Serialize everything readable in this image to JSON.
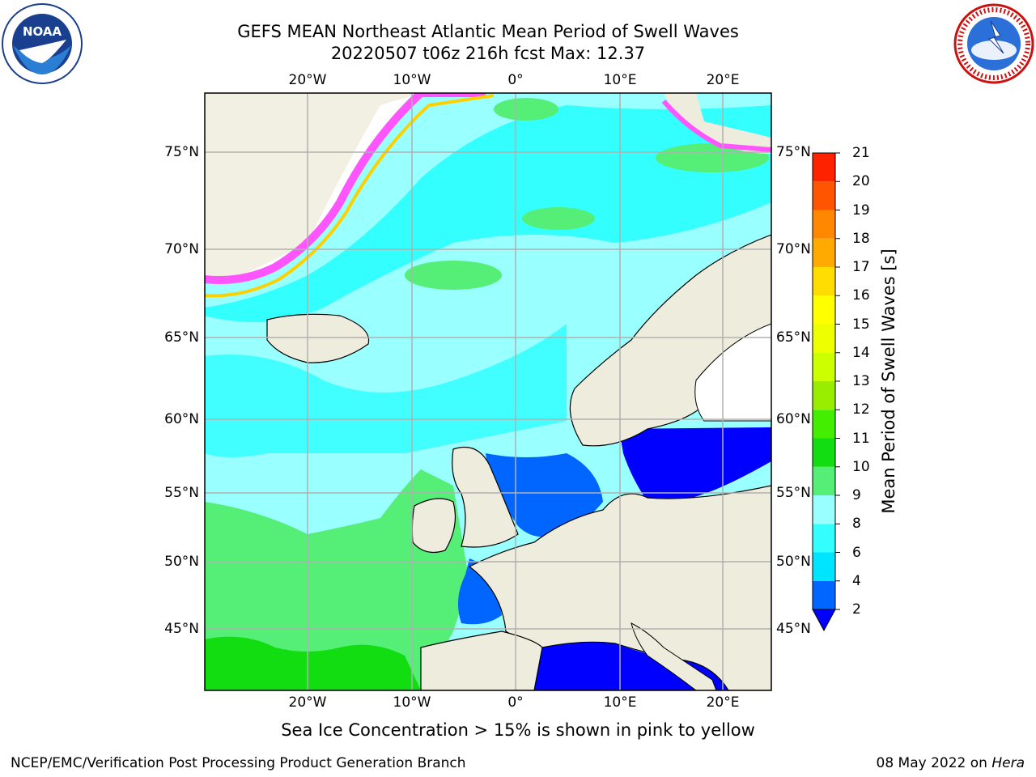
{
  "header": {
    "title_line1": "GEFS MEAN Northeast Atlantic Mean Period of Swell Waves",
    "title_line2": "20220507 t06z 216h fcst   Max: 12.37"
  },
  "logos": {
    "noaa": {
      "text": "NOAA",
      "ring_text": "NATIONAL OCEANIC AND ATMOSPHERIC ADMINISTRATION · U.S. DEPARTMENT OF COMMERCE"
    },
    "nws": {
      "ring_text": "NATIONAL WEATHER SERVICE"
    }
  },
  "map": {
    "lon_labels_top": [
      "20°W",
      "10°W",
      "0°",
      "10°E",
      "20°E"
    ],
    "lon_labels_bottom": [
      "20°W",
      "10°W",
      "0°",
      "10°E",
      "20°E"
    ],
    "lat_labels_left": [
      "75°N",
      "70°N",
      "65°N",
      "60°N",
      "55°N",
      "50°N",
      "45°N"
    ],
    "lat_labels_right": [
      "75°N",
      "70°N",
      "65°N",
      "60°N",
      "55°N",
      "50°N",
      "45°N"
    ],
    "colors": {
      "ocean_light": "#99ffff",
      "ocean_cyan": "#33ffff",
      "land": "#eeecdc",
      "green": "#55ee77",
      "blue": "#0000ff",
      "ice_pink": "#ff55ff",
      "ice_yellow": "#ffd000"
    }
  },
  "colorbar": {
    "label": "Mean Period of Swell Waves [s]",
    "ticks": [
      "2",
      "4",
      "6",
      "8",
      "9",
      "10",
      "11",
      "12",
      "13",
      "14",
      "15",
      "16",
      "17",
      "18",
      "19",
      "20",
      "21"
    ],
    "colors": [
      "#0066ff",
      "#00e5ff",
      "#33ffff",
      "#99ffff",
      "#55ee77",
      "#11dd11",
      "#44ee00",
      "#99ee00",
      "#ccff00",
      "#eeff00",
      "#ffff00",
      "#ffdd00",
      "#ffaa00",
      "#ff8800",
      "#ff5500",
      "#ff2200"
    ],
    "extend_color": "#0000ff"
  },
  "caption": "Sea Ice Concentration > 15% is shown in pink to yellow",
  "footer": {
    "left": "NCEP/EMC/Verification Post Processing Product Generation Branch",
    "date": "08 May 2022 on ",
    "host": "Hera"
  }
}
